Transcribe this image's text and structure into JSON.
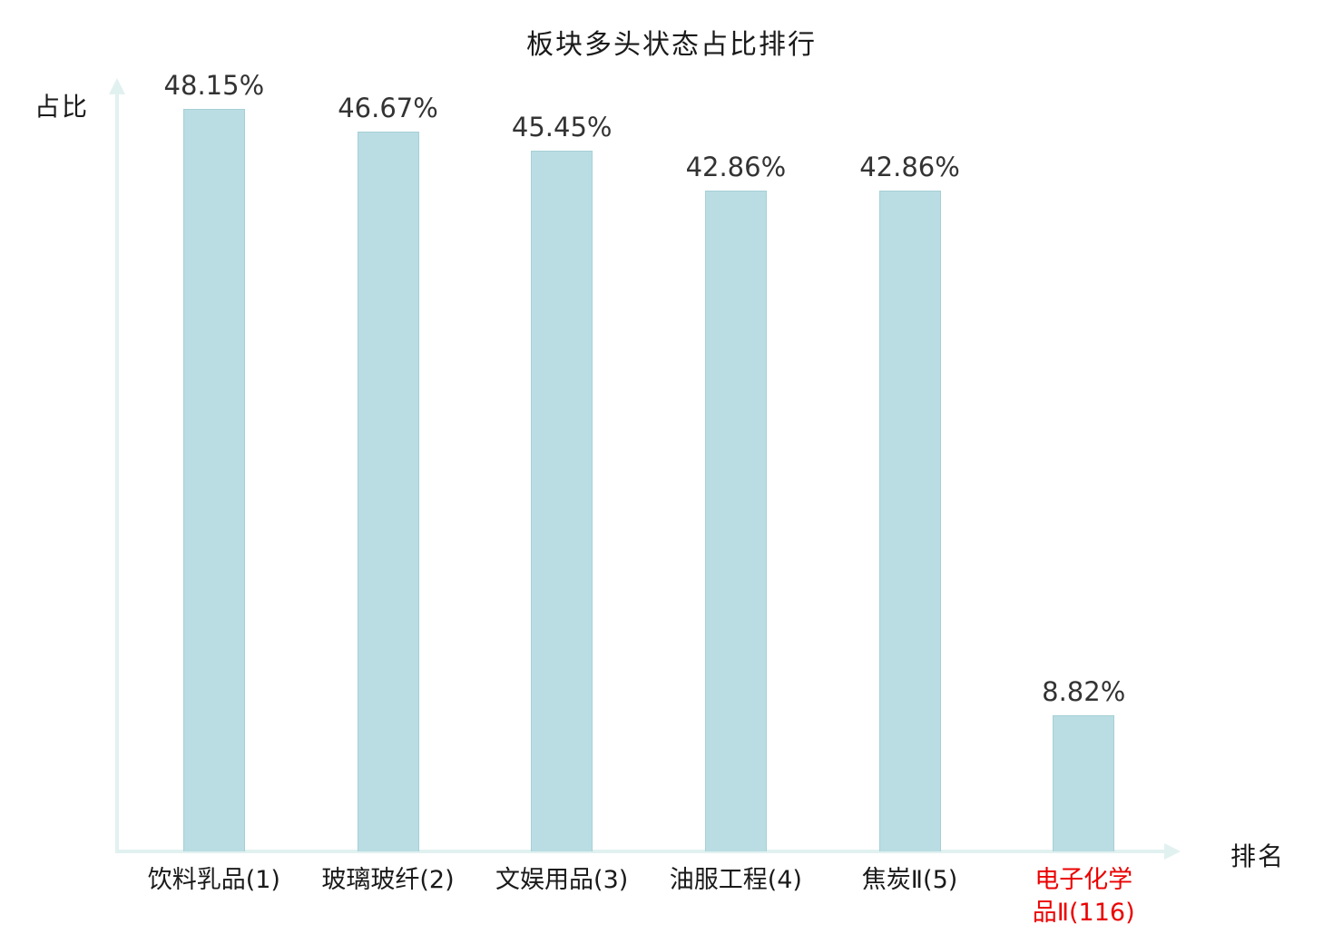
{
  "chart_data": {
    "type": "bar",
    "title": "板块多头状态占比排行",
    "xlabel": "排名",
    "ylabel": "占比",
    "categories": [
      "饮料乳品(1)",
      "玻璃玻纤(2)",
      "文娱用品(3)",
      "油服工程(4)",
      "焦炭Ⅱ(5)",
      "电子化学品Ⅱ(116)"
    ],
    "values": [
      48.15,
      46.67,
      45.45,
      42.86,
      42.86,
      8.82
    ],
    "value_labels": [
      "48.15%",
      "46.67%",
      "45.45%",
      "42.86%",
      "42.86%",
      "8.82%"
    ],
    "highlight_index": 5,
    "ylim": [
      0,
      50
    ],
    "grid": false,
    "legend": false,
    "colors": {
      "bar": "#b9dde2",
      "bar_border": "#a6d0d6",
      "axis": "#e1f1ef",
      "value_label": "#333333",
      "highlight_label": "#eb0000",
      "text": "#1a1a1a"
    }
  }
}
